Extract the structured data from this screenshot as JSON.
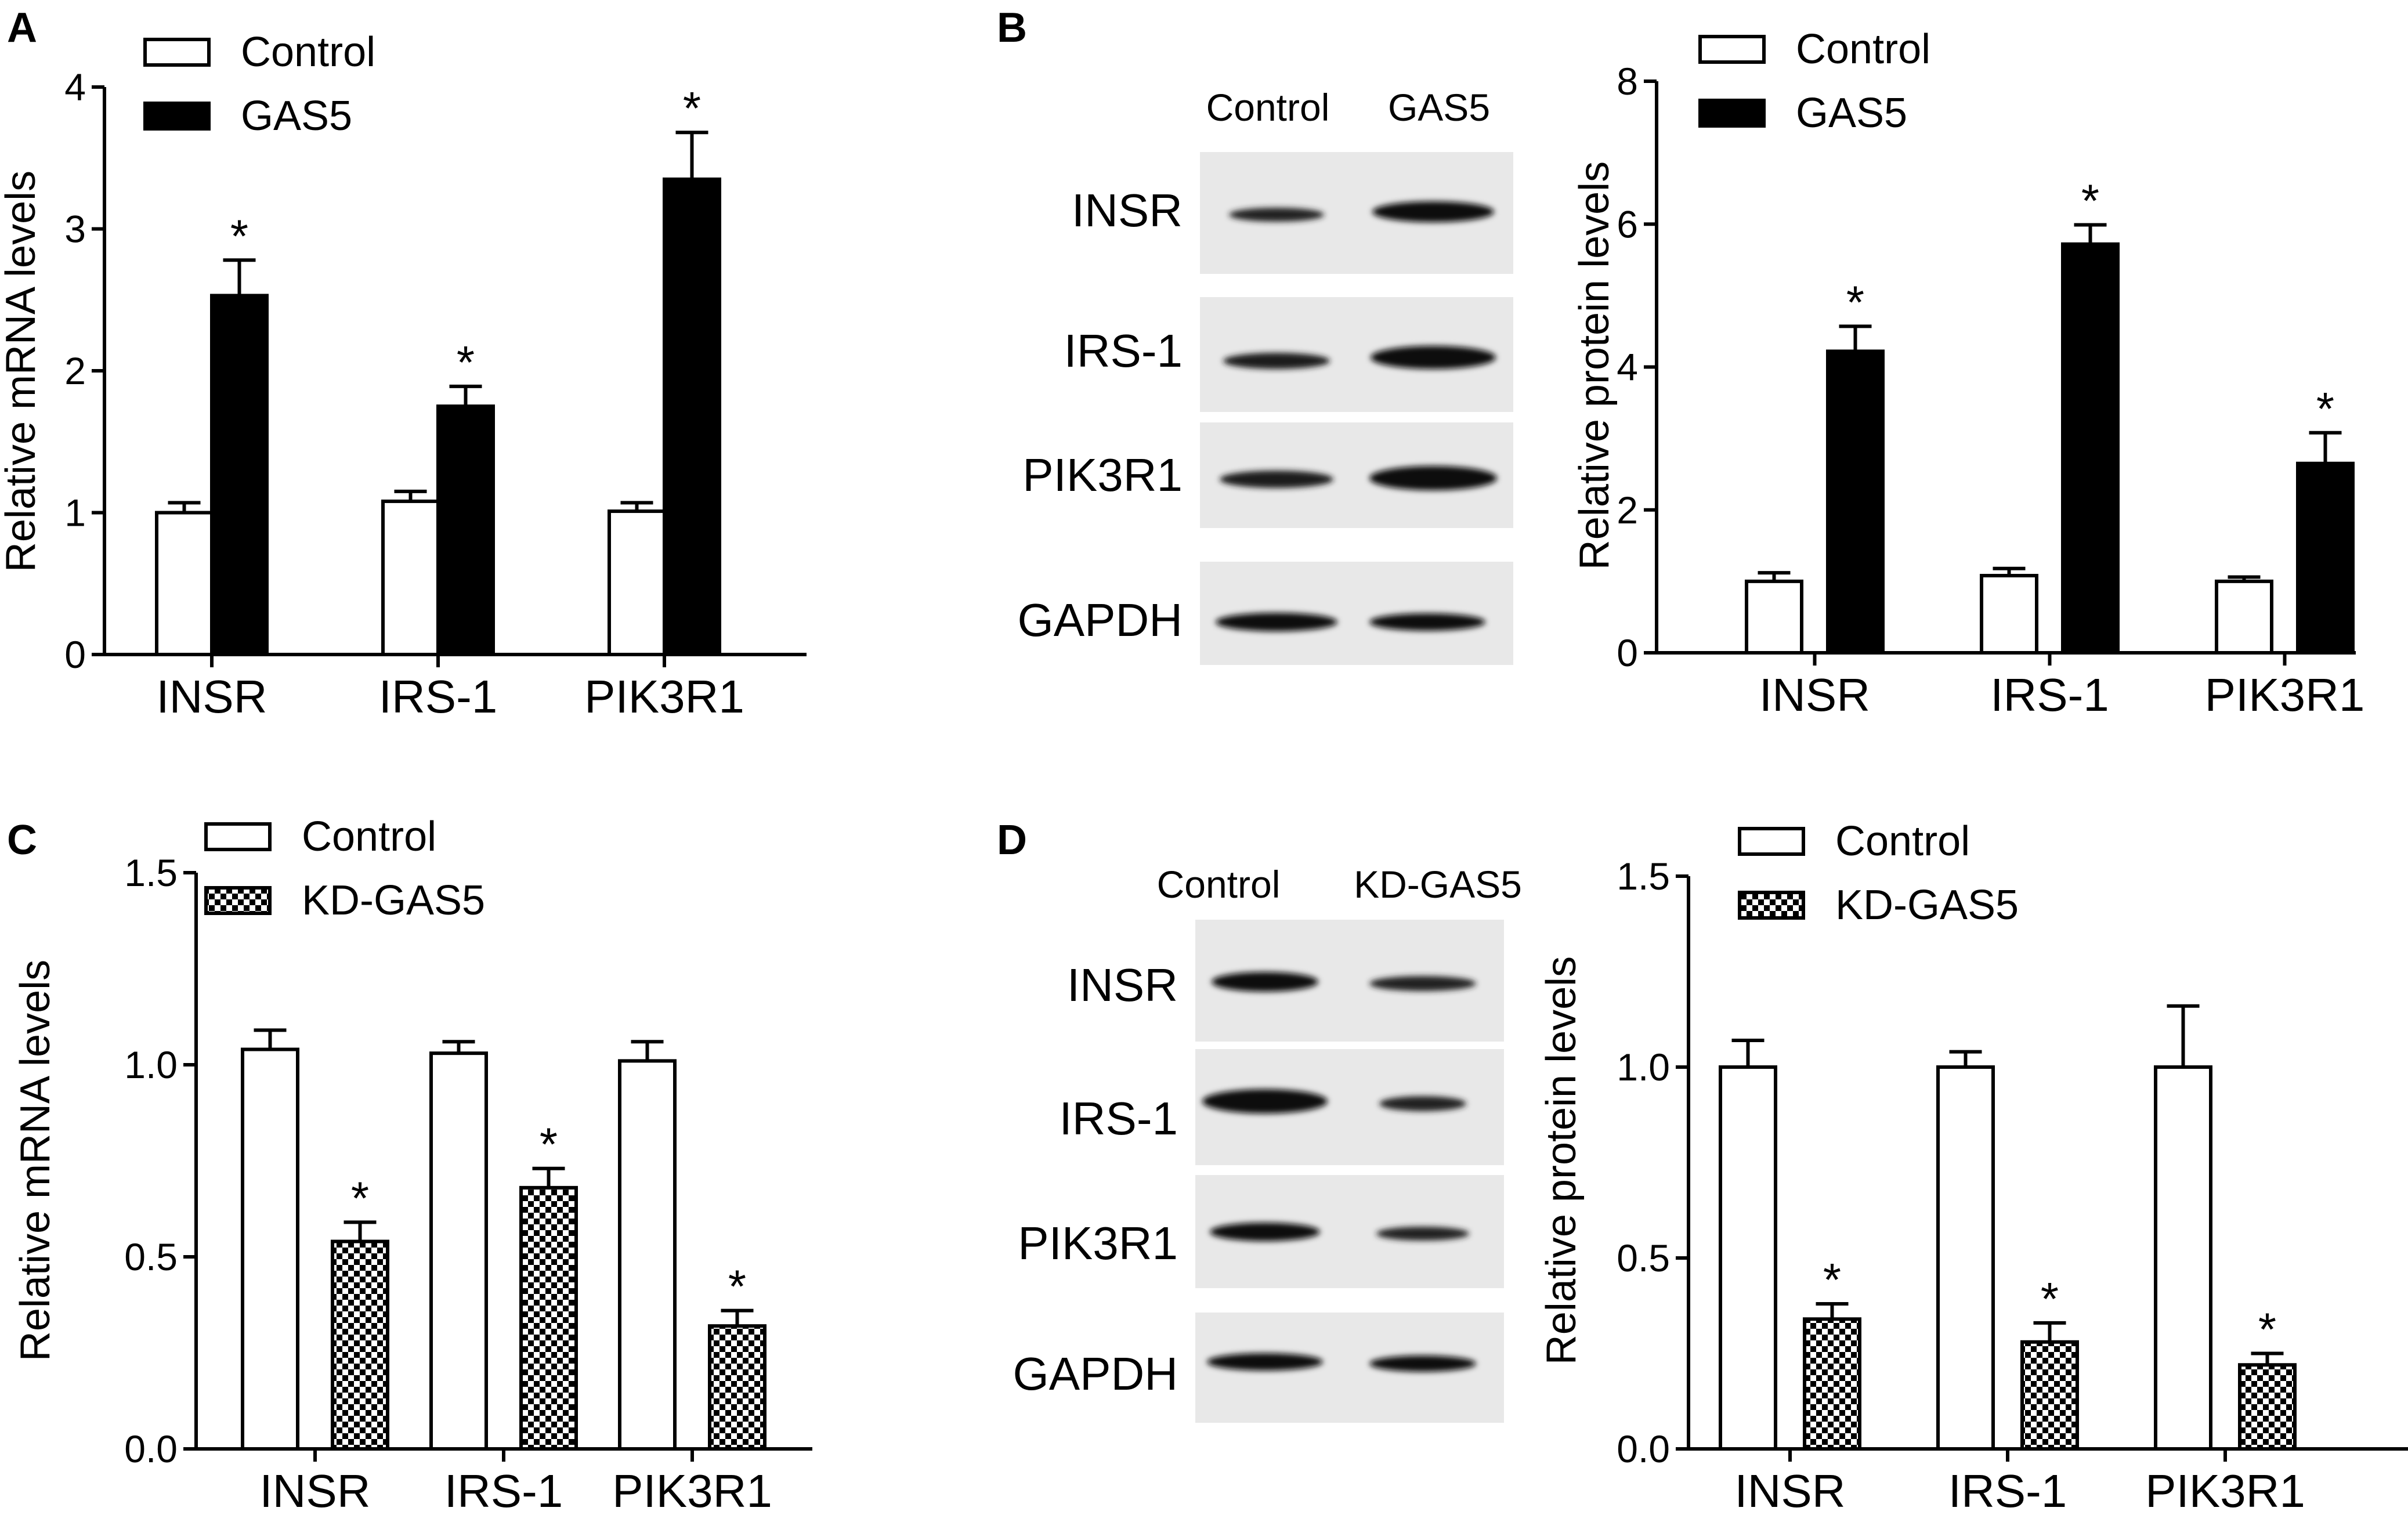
{
  "panels": {
    "A": {
      "letter": "A"
    },
    "B": {
      "letter": "B",
      "blot": {
        "columns": [
          "Control",
          "GAS5"
        ],
        "rows": [
          "INSR",
          "IRS-1",
          "PIK3R1",
          "GAPDH"
        ]
      }
    },
    "C": {
      "letter": "C"
    },
    "D": {
      "letter": "D",
      "blot": {
        "columns": [
          "Control",
          "KD-GAS5"
        ],
        "rows": [
          "INSR",
          "IRS-1",
          "PIK3R1",
          "GAPDH"
        ]
      }
    }
  },
  "colors": {
    "control_fill": "#ffffff",
    "treated_fill": "#000000",
    "axis": "#000000"
  },
  "chart_data": [
    {
      "panel": "A",
      "type": "bar",
      "title": "",
      "xlabel": "",
      "ylabel": "Relative mRNA levels",
      "categories": [
        "INSR",
        "IRS-1",
        "PIK3R1"
      ],
      "ylim": [
        0,
        4
      ],
      "yticks": [
        "0",
        "1",
        "2",
        "3",
        "4"
      ],
      "legend_position": "top-left",
      "series": [
        {
          "name": "Control",
          "pattern": "open",
          "values": [
            1.0,
            1.08,
            1.01
          ],
          "errors": [
            0.07,
            0.07,
            0.06
          ],
          "significance": [
            "",
            "",
            ""
          ]
        },
        {
          "name": "GAS5",
          "pattern": "solid",
          "values": [
            2.53,
            1.75,
            3.35
          ],
          "errors": [
            0.25,
            0.14,
            0.33
          ],
          "significance": [
            "*",
            "*",
            "*"
          ]
        }
      ]
    },
    {
      "panel": "B",
      "type": "bar",
      "title": "",
      "xlabel": "",
      "ylabel": "Relative protein levels",
      "categories": [
        "INSR",
        "IRS-1",
        "PIK3R1"
      ],
      "ylim": [
        0,
        8
      ],
      "yticks": [
        "0",
        "2",
        "4",
        "6",
        "8"
      ],
      "legend_position": "top-left",
      "series": [
        {
          "name": "Control",
          "pattern": "open",
          "values": [
            1.0,
            1.08,
            1.0
          ],
          "errors": [
            0.12,
            0.1,
            0.06
          ],
          "significance": [
            "",
            "",
            ""
          ]
        },
        {
          "name": "GAS5",
          "pattern": "solid",
          "values": [
            4.22,
            5.72,
            2.65
          ],
          "errors": [
            0.35,
            0.27,
            0.43
          ],
          "significance": [
            "*",
            "*",
            "*"
          ]
        }
      ]
    },
    {
      "panel": "C",
      "type": "bar",
      "title": "",
      "xlabel": "",
      "ylabel": "Relative mRNA levels",
      "categories": [
        "INSR",
        "IRS-1",
        "PIK3R1"
      ],
      "ylim": [
        0,
        1.5
      ],
      "yticks": [
        "0.0",
        "0.5",
        "1.0",
        "1.5"
      ],
      "legend_position": "top-left",
      "series": [
        {
          "name": "Control",
          "pattern": "open",
          "values": [
            1.04,
            1.03,
            1.01
          ],
          "errors": [
            0.05,
            0.03,
            0.05
          ],
          "significance": [
            "",
            "",
            ""
          ]
        },
        {
          "name": "KD-GAS5",
          "pattern": "checker",
          "values": [
            0.54,
            0.68,
            0.32
          ],
          "errors": [
            0.05,
            0.05,
            0.04
          ],
          "significance": [
            "*",
            "*",
            "*"
          ]
        }
      ]
    },
    {
      "panel": "D",
      "type": "bar",
      "title": "",
      "xlabel": "",
      "ylabel": "Relative protein levels",
      "categories": [
        "INSR",
        "IRS-1",
        "PIK3R1"
      ],
      "ylim": [
        0,
        1.5
      ],
      "yticks": [
        "0.0",
        "0.5",
        "1.0",
        "1.5"
      ],
      "legend_position": "top-left",
      "series": [
        {
          "name": "Control",
          "pattern": "open",
          "values": [
            1.0,
            1.0,
            1.0
          ],
          "errors": [
            0.07,
            0.04,
            0.16
          ],
          "significance": [
            "",
            "",
            ""
          ]
        },
        {
          "name": "KD-GAS5",
          "pattern": "checker",
          "values": [
            0.34,
            0.28,
            0.22
          ],
          "errors": [
            0.04,
            0.05,
            0.03
          ],
          "significance": [
            "*",
            "*",
            "*"
          ]
        }
      ]
    }
  ]
}
